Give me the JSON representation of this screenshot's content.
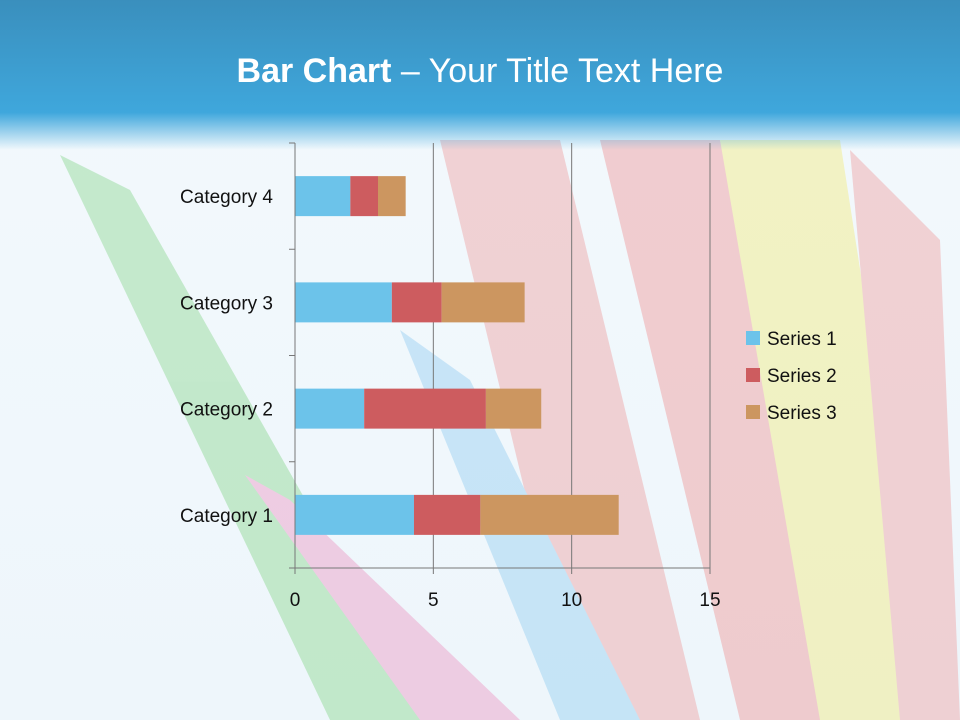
{
  "slide": {
    "title_bold": "Bar Chart",
    "title_rest": " – Your Title Text Here"
  },
  "colors": {
    "series1": "#6cc3ea",
    "series2": "#cd5c5f",
    "series3": "#cc9660",
    "banner": "#3fa7dc"
  },
  "chart_data": {
    "type": "bar",
    "orientation": "horizontal",
    "stacked": true,
    "categories": [
      "Category 1",
      "Category 2",
      "Category 3",
      "Category 4"
    ],
    "series": [
      {
        "name": "Series 1",
        "values": [
          4.3,
          2.5,
          3.5,
          2.0
        ]
      },
      {
        "name": "Series 2",
        "values": [
          2.4,
          4.4,
          1.8,
          1.0
        ]
      },
      {
        "name": "Series 3",
        "values": [
          5.0,
          2.0,
          3.0,
          1.0
        ]
      }
    ],
    "xlim": [
      0,
      15
    ],
    "xticks": [
      0,
      5,
      10,
      15
    ],
    "grid": "vertical",
    "legend": "right"
  }
}
